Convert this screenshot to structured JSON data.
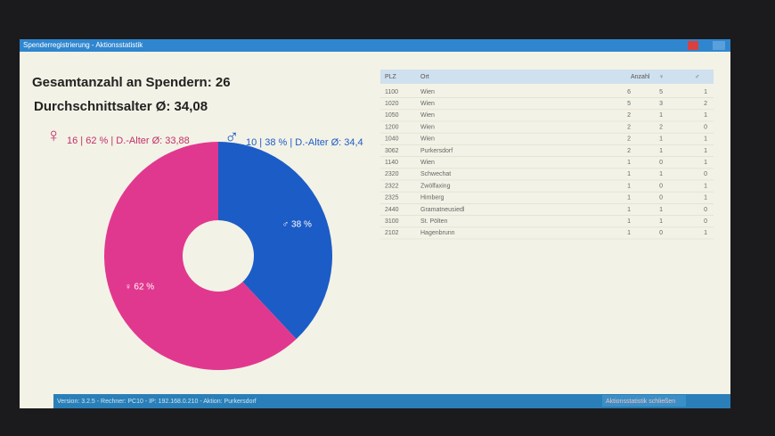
{
  "window": {
    "title": "Spenderregistrierung - Aktionsstatistik"
  },
  "summary": {
    "total": "Gesamtanzahl an Spendern: 26",
    "average_age": "Durchschnittsalter Ø: 34,08",
    "female_symbol": "♀",
    "female_text": "16 | 62 % | D.-Alter Ø: 33,88",
    "male_symbol": "♂",
    "male_text": "10 | 38 % | D.-Alter Ø: 34,4"
  },
  "chart_data": {
    "type": "donut",
    "categories": [
      "♂",
      "♀"
    ],
    "values": [
      38,
      62
    ],
    "value_labels": [
      "♂ 38 %",
      "♀ 62 %"
    ],
    "colors": [
      "#1c5cc6",
      "#e1388f"
    ]
  },
  "table": {
    "headers": [
      "PLZ",
      "Ort",
      "Anzahl",
      "♀",
      "♂"
    ],
    "rows": [
      [
        "1100",
        "Wien",
        "6",
        "5",
        "1"
      ],
      [
        "1020",
        "Wien",
        "5",
        "3",
        "2"
      ],
      [
        "1050",
        "Wien",
        "2",
        "1",
        "1"
      ],
      [
        "1200",
        "Wien",
        "2",
        "2",
        "0"
      ],
      [
        "1040",
        "Wien",
        "2",
        "1",
        "1"
      ],
      [
        "3062",
        "Purkersdorf",
        "2",
        "1",
        "1"
      ],
      [
        "1140",
        "Wien",
        "1",
        "0",
        "1"
      ],
      [
        "2320",
        "Schwechat",
        "1",
        "1",
        "0"
      ],
      [
        "2322",
        "Zwölfaxing",
        "1",
        "0",
        "1"
      ],
      [
        "2325",
        "Himberg",
        "1",
        "0",
        "1"
      ],
      [
        "2440",
        "Gramatneusiedl",
        "1",
        "1",
        "0"
      ],
      [
        "3100",
        "St. Pölten",
        "1",
        "1",
        "0"
      ],
      [
        "2102",
        "Hagenbrunn",
        "1",
        "0",
        "1"
      ]
    ]
  },
  "status_bar": {
    "text": "Version: 3.2.5 - Rechner: PC10 - IP: 192.168.0.210 - Aktion: Purkersdorf",
    "close_button": "Aktionsstatistik schließen"
  }
}
